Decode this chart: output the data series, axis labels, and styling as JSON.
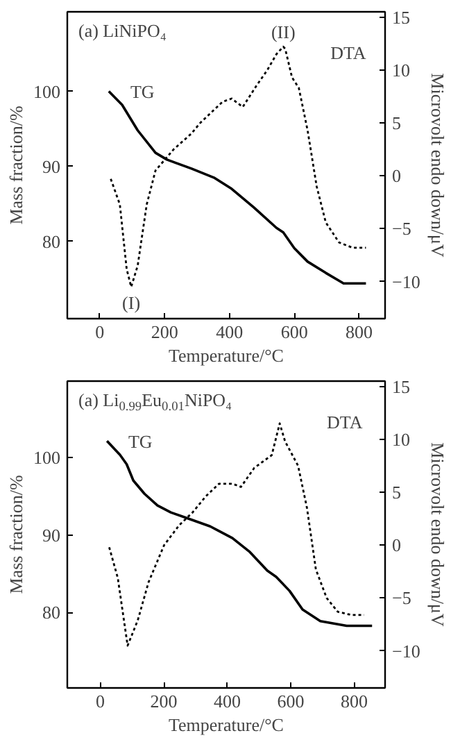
{
  "chart_data": [
    {
      "type": "line",
      "title": "(a) LiNiPO₄",
      "xlabel": "Temperature/°C",
      "ylabel": "Mass fraction/%",
      "y2label": "Microvolt endo down/μV",
      "xlim": [
        -100,
        880
      ],
      "xticks": [
        0,
        200,
        400,
        600,
        800
      ],
      "ylim": [
        69.7,
        110.6
      ],
      "yticks": [
        80,
        90,
        100
      ],
      "y2lim": [
        -13.5,
        15.5
      ],
      "y2ticks": [
        -10,
        -5,
        0,
        5,
        10,
        15
      ],
      "grid": false,
      "annotations": [
        "(I)",
        "(II)"
      ],
      "series": [
        {
          "name": "TG",
          "color": "#000000",
          "line_style": "solid",
          "x": [
            28,
            69,
            117,
            172,
            207,
            283,
            352,
            407,
            476,
            545,
            566,
            600,
            641,
            697,
            752,
            821
          ],
          "values": [
            100,
            98.2,
            94.8,
            91.8,
            90.9,
            89.7,
            88.5,
            87.0,
            84.5,
            81.8,
            81.2,
            79.1,
            77.3,
            75.8,
            74.4,
            74.4
          ]
        },
        {
          "name": "DTA",
          "color": "#000000",
          "line_style": "dotted",
          "axis": "y2",
          "x": [
            34,
            62,
            83,
            97,
            117,
            145,
            172,
            214,
            228,
            283,
            310,
            379,
            407,
            441,
            483,
            517,
            545,
            566,
            572,
            593,
            614,
            641,
            669,
            697,
            738,
            780,
            821
          ],
          "values": [
            -0.3,
            -2.7,
            -8.8,
            -10.5,
            -8.5,
            -2.7,
            0.5,
            2.0,
            2.5,
            4.0,
            5.0,
            7.0,
            7.3,
            6.5,
            8.5,
            10.0,
            11.5,
            12.2,
            12.0,
            9.3,
            8.3,
            4.3,
            -1.0,
            -4.4,
            -6.3,
            -6.8,
            -6.8
          ]
        }
      ]
    },
    {
      "type": "line",
      "title": "(a) Li$_{0.99}$Eu$_{0.01}$NiPO₄",
      "xlabel": "Temperature/°C",
      "ylabel": "Mass fraction/%",
      "y2label": "Microvolt endo down/μV",
      "xlim": [
        -104,
        897
      ],
      "xticks": [
        0,
        200,
        400,
        600,
        800
      ],
      "ylim": [
        70.3,
        109.8
      ],
      "yticks": [
        80,
        90,
        100
      ],
      "y2lim": [
        -13.5,
        15.5
      ],
      "y2ticks": [
        -10,
        -5,
        0,
        5,
        10,
        15
      ],
      "grid": false,
      "series": [
        {
          "name": "TG",
          "color": "#000000",
          "line_style": "solid",
          "x": [
            21,
            62,
            83,
            104,
            139,
            180,
            222,
            277,
            346,
            416,
            471,
            526,
            554,
            596,
            637,
            693,
            776,
            856
          ],
          "values": [
            102.1,
            100.3,
            99.1,
            97.0,
            95.3,
            93.8,
            92.9,
            92.1,
            91.1,
            89.6,
            87.8,
            85.4,
            84.6,
            82.8,
            80.4,
            78.9,
            78.3,
            78.3
          ]
        },
        {
          "name": "DTA",
          "color": "#000000",
          "line_style": "dotted",
          "axis": "y2",
          "x": [
            28,
            55,
            86,
            118,
            152,
            201,
            249,
            291,
            332,
            374,
            416,
            443,
            485,
            540,
            565,
            582,
            623,
            651,
            679,
            713,
            748,
            790,
            831
          ],
          "values": [
            -0.2,
            -3.1,
            -9.5,
            -7.1,
            -3.5,
            0,
            1.9,
            3.1,
            4.6,
            5.8,
            5.8,
            5.5,
            7.3,
            8.5,
            11.5,
            9.8,
            7.5,
            3.5,
            -2.3,
            -5.0,
            -6.3,
            -6.6,
            -6.6
          ]
        }
      ]
    }
  ]
}
